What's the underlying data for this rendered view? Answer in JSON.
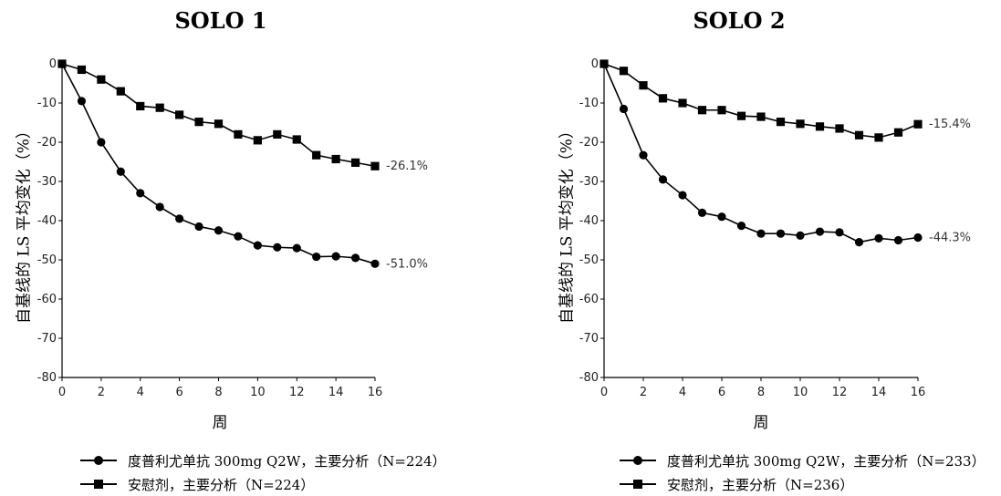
{
  "chart_data": [
    {
      "type": "line",
      "title": "SOLO 1",
      "xlabel": "周",
      "ylabel": "自基线的 LS 平均变化（%）",
      "xlim": [
        0,
        16
      ],
      "ylim": [
        -80,
        0
      ],
      "x_ticks": [
        0,
        2,
        4,
        6,
        8,
        10,
        12,
        14,
        16
      ],
      "y_ticks": [
        0,
        -10,
        -20,
        -30,
        -40,
        -50,
        -60,
        -70,
        -80
      ],
      "grid": false,
      "legend_position": "bottom",
      "series": [
        {
          "name": "度普利尤单抗 300mg Q2W，主要分析（N=224）",
          "marker": "circle",
          "x": [
            0,
            1,
            2,
            3,
            4,
            5,
            6,
            7,
            8,
            9,
            10,
            11,
            12,
            13,
            14,
            15,
            16
          ],
          "y": [
            0,
            -9.5,
            -20,
            -27.5,
            -33,
            -36.5,
            -39.5,
            -41.5,
            -42.5,
            -44,
            -46.3,
            -46.8,
            -47,
            -49.2,
            -49.1,
            -49.5,
            -51
          ],
          "end_label": "-51.0%"
        },
        {
          "name": "安慰剂，主要分析（N=224）",
          "marker": "square",
          "x": [
            0,
            1,
            2,
            3,
            4,
            5,
            6,
            7,
            8,
            9,
            10,
            11,
            12,
            13,
            14,
            15,
            16
          ],
          "y": [
            0,
            -1.5,
            -4,
            -7,
            -10.8,
            -11.2,
            -13,
            -14.8,
            -15.3,
            -18,
            -19.5,
            -18,
            -19.3,
            -23.3,
            -24.3,
            -25.2,
            -26.1
          ],
          "end_label": "-26.1%"
        }
      ]
    },
    {
      "type": "line",
      "title": "SOLO 2",
      "xlabel": "周",
      "ylabel": "自基线的 LS 平均变化（%）",
      "xlim": [
        0,
        16
      ],
      "ylim": [
        -80,
        0
      ],
      "x_ticks": [
        0,
        2,
        4,
        6,
        8,
        10,
        12,
        14,
        16
      ],
      "y_ticks": [
        0,
        -10,
        -20,
        -30,
        -40,
        -50,
        -60,
        -70,
        -80
      ],
      "grid": false,
      "legend_position": "bottom",
      "series": [
        {
          "name": "度普利尤单抗 300mg Q2W，主要分析（N=233）",
          "marker": "circle",
          "x": [
            0,
            1,
            2,
            3,
            4,
            5,
            6,
            7,
            8,
            9,
            10,
            11,
            12,
            13,
            14,
            15,
            16
          ],
          "y": [
            0,
            -11.5,
            -23.3,
            -29.5,
            -33.5,
            -38,
            -39,
            -41.3,
            -43.3,
            -43.3,
            -43.8,
            -42.8,
            -43,
            -45.5,
            -44.5,
            -45,
            -44.3
          ],
          "end_label": "-44.3%"
        },
        {
          "name": "安慰剂，主要分析（N=236）",
          "marker": "square",
          "x": [
            0,
            1,
            2,
            3,
            4,
            5,
            6,
            7,
            8,
            9,
            10,
            11,
            12,
            13,
            14,
            15,
            16
          ],
          "y": [
            0,
            -1.8,
            -5.5,
            -8.8,
            -10,
            -11.8,
            -11.8,
            -13.3,
            -13.5,
            -14.8,
            -15.3,
            -16,
            -16.5,
            -18.2,
            -18.8,
            -17.5,
            -15.4
          ],
          "end_label": "-15.4%"
        }
      ]
    }
  ]
}
